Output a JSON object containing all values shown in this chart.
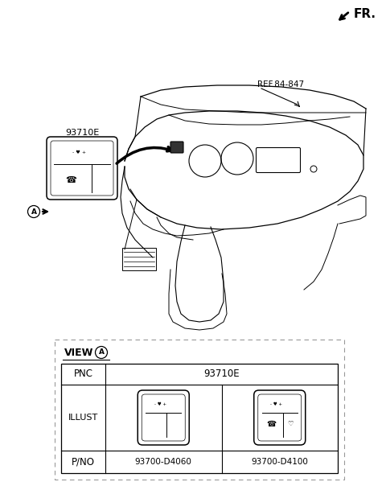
{
  "bg_color": "#ffffff",
  "fr_label": "FR.",
  "ref_label": "REF.84-847",
  "part_label": "93710E",
  "view_label": "VIEW",
  "pnc_label": "PNC",
  "illust_label": "ILLUST",
  "pno_label": "P/NO",
  "pno1": "93700-D4060",
  "pno2": "93700-D4100",
  "pnc_value": "93710E",
  "line_color": "#000000",
  "dash_color": "#999999"
}
